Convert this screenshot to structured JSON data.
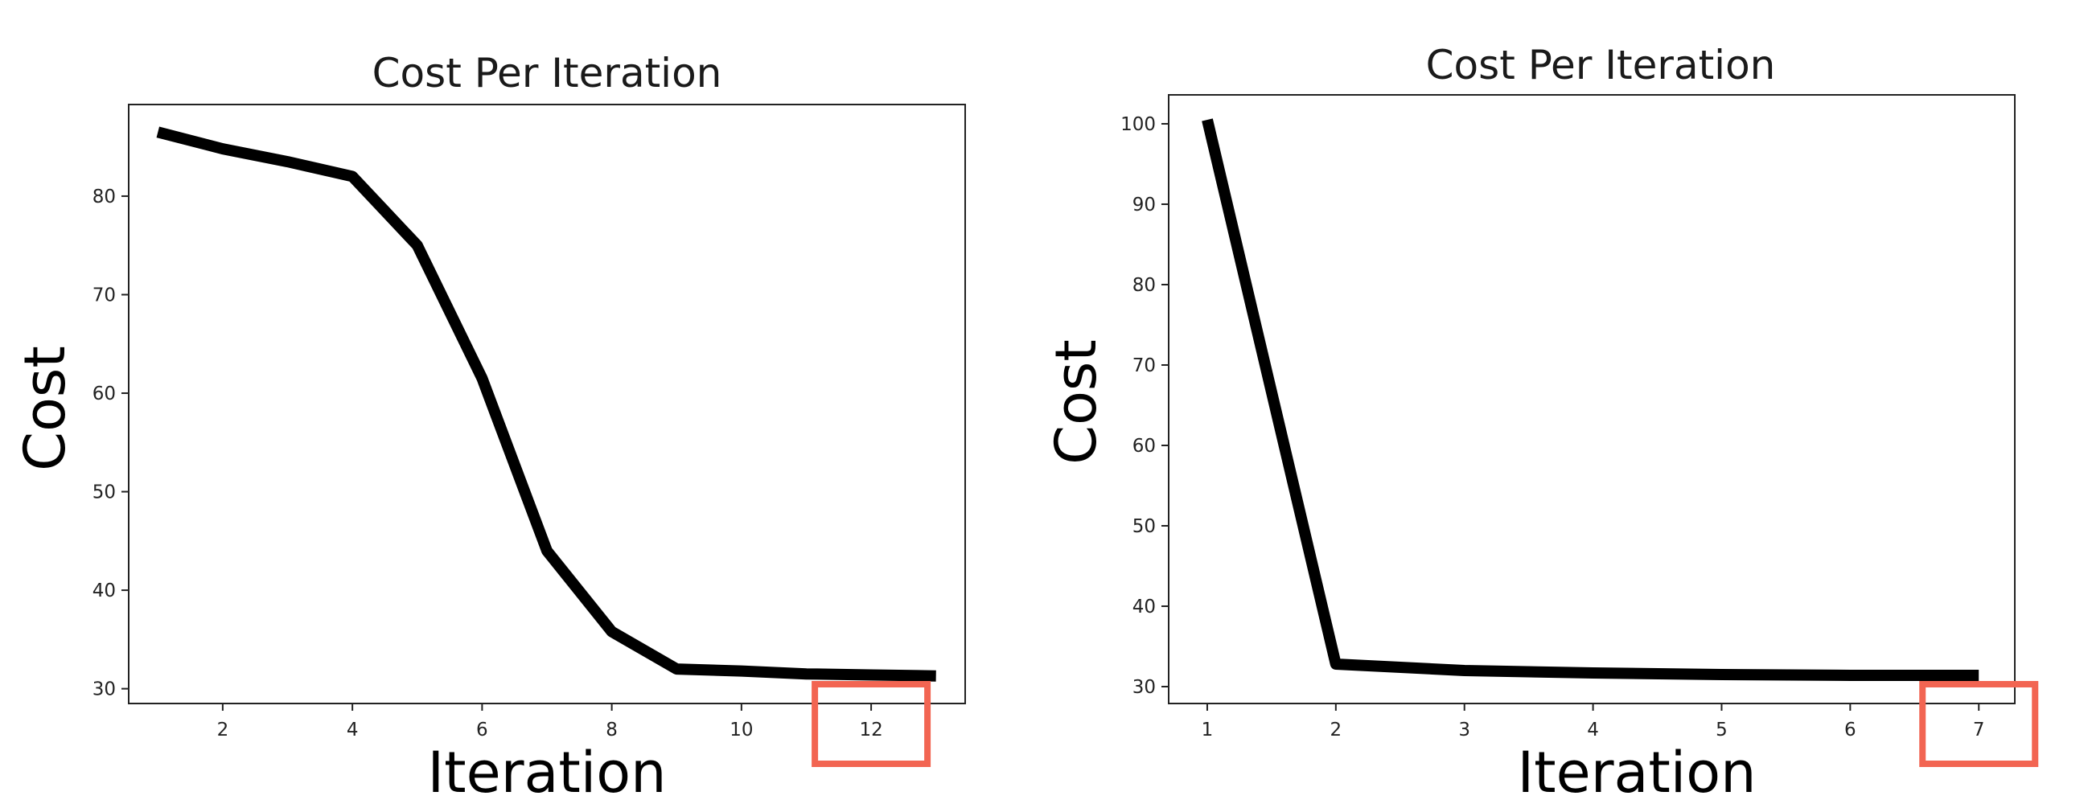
{
  "chart_data": [
    {
      "type": "line",
      "title": "Cost Per Iteration",
      "xlabel": "Iteration",
      "ylabel": "Cost",
      "x": [
        1,
        2,
        3,
        4,
        5,
        6,
        7,
        8,
        9,
        10,
        11,
        12,
        13
      ],
      "series": [
        {
          "values": [
            86.5,
            84.8,
            83.5,
            82.0,
            75.0,
            61.5,
            44.0,
            35.8,
            32.0,
            31.8,
            31.5,
            31.4,
            31.3
          ]
        }
      ],
      "xticks": [
        "2",
        "4",
        "6",
        "8",
        "10",
        "12"
      ],
      "yticks": [
        "30",
        "40",
        "50",
        "60",
        "70",
        "80"
      ],
      "xlim": [
        0.55,
        13.45
      ],
      "ylim": [
        28.5,
        89.3
      ],
      "highlight_tick": "12",
      "line_color": "#000000",
      "highlight_color": "#f26552"
    },
    {
      "type": "line",
      "title": "Cost Per Iteration",
      "xlabel": "Iteration",
      "ylabel": "Cost",
      "x": [
        1,
        2,
        3,
        4,
        5,
        6,
        7
      ],
      "series": [
        {
          "values": [
            100.5,
            32.8,
            32.0,
            31.7,
            31.5,
            31.4,
            31.4
          ]
        }
      ],
      "xticks": [
        "1",
        "2",
        "3",
        "4",
        "5",
        "6",
        "7"
      ],
      "yticks": [
        "30",
        "40",
        "50",
        "60",
        "70",
        "80",
        "90",
        "100"
      ],
      "xlim": [
        0.7,
        7.28
      ],
      "ylim": [
        27.9,
        103.6
      ],
      "highlight_tick": "7",
      "line_color": "#000000",
      "highlight_color": "#f26552"
    }
  ]
}
